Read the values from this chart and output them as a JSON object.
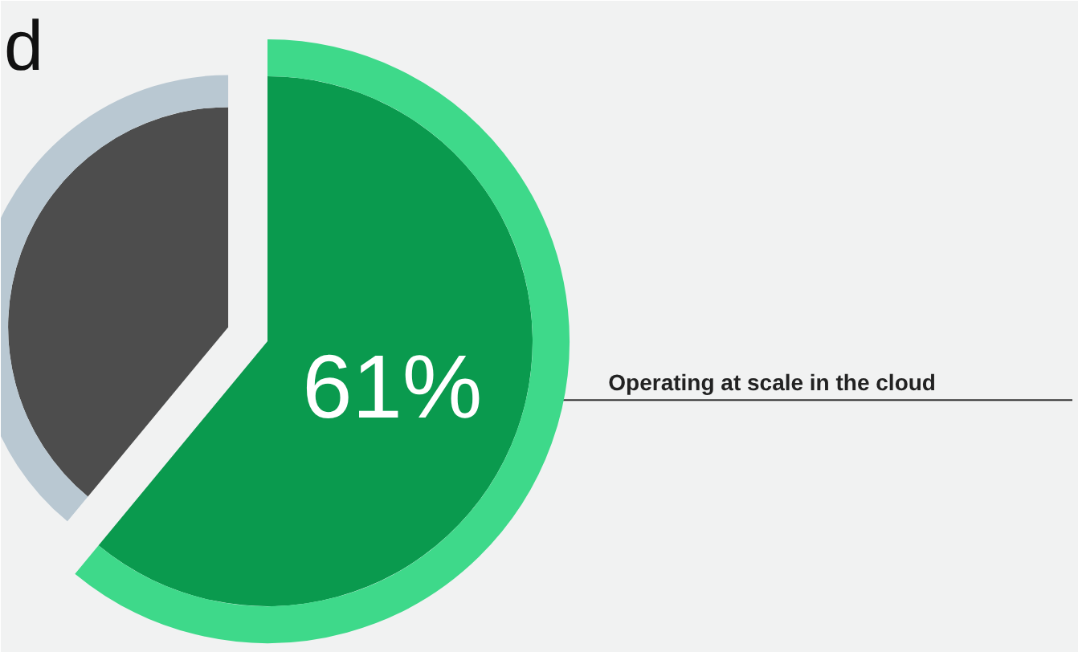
{
  "chart_data": {
    "type": "pie",
    "title": "d",
    "categories": [
      "Operating at scale in the cloud",
      null
    ],
    "values": [
      61,
      39
    ],
    "colors": [
      "#0a9a4e",
      "#4d4d4d"
    ],
    "value_labels": [
      "61%",
      null
    ]
  }
}
